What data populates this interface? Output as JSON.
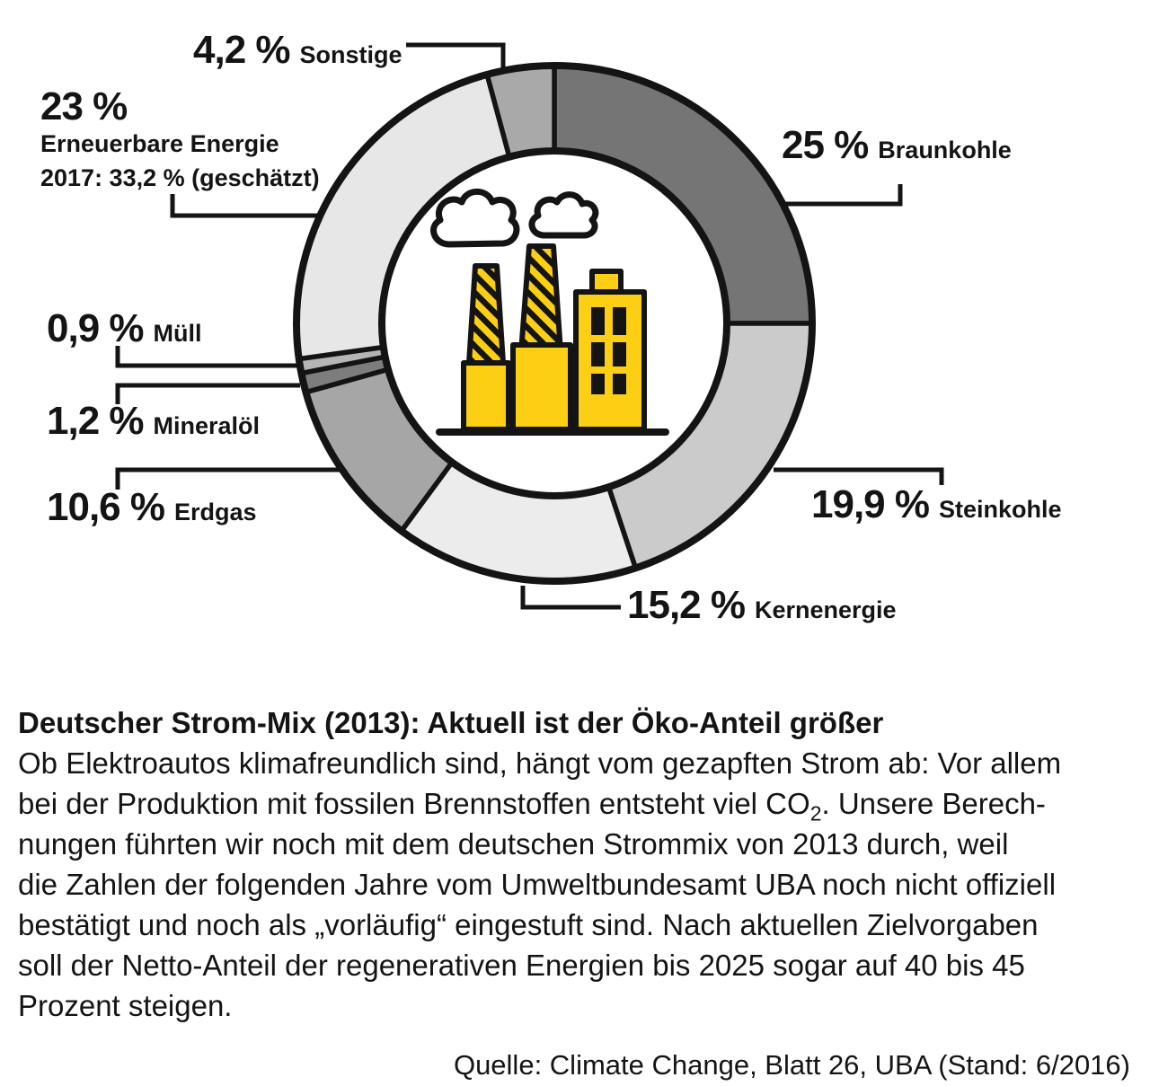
{
  "chart_data": {
    "type": "pie",
    "variant": "donut",
    "title": "Deutscher Strom-Mix (2013)",
    "unit": "%",
    "start_angle_deg": 0,
    "direction": "clockwise",
    "legend_position": "callout-labels",
    "center_icon": "factory",
    "ring_stroke_color": "#141414",
    "segments": [
      {
        "label": "Braunkohle",
        "value": 25.0,
        "display": "25 %",
        "color": "#757575"
      },
      {
        "label": "Steinkohle",
        "value": 19.9,
        "display": "19,9 %",
        "color": "#cbcbcb"
      },
      {
        "label": "Kernenergie",
        "value": 15.2,
        "display": "15,2 %",
        "color": "#ececec"
      },
      {
        "label": "Erdgas",
        "value": 10.6,
        "display": "10,6 %",
        "color": "#a6a6a6"
      },
      {
        "label": "Mineralöl",
        "value": 1.2,
        "display": "1,2 %",
        "color": "#7d7d7d"
      },
      {
        "label": "Müll",
        "value": 0.9,
        "display": "0,9 %",
        "color": "#b5b5b5"
      },
      {
        "label": "Erneuerbare Energie",
        "value": 23.0,
        "display": "23 %",
        "color": "#e7e7e7",
        "note": "2017: 33,2 % (geschätzt)"
      },
      {
        "label": "Sonstige",
        "value": 4.2,
        "display": "4,2 %",
        "color": "#a9a9a9"
      }
    ]
  },
  "icon": {
    "name": "factory-icon",
    "color": "#FCCF14",
    "outline": "#141414"
  },
  "caption": {
    "title": "Deutscher Strom-Mix (2013): Aktuell ist der Öko-Anteil größer",
    "line1": "Ob Elektroautos klimafreundlich sind, hängt vom gezapften Strom ab: Vor allem",
    "line2_pre": "bei der Produktion mit fossilen Brennstoffen entsteht viel CO",
    "line2_sub": "2",
    "line2_post": ". Unsere Berech-",
    "line3": "nungen führten wir noch mit dem deutschen Strommix von 2013 durch, weil",
    "line4": "die Zahlen der folgenden Jahre vom Umweltbundesamt UBA noch nicht offiziell",
    "line5": "bestätigt und noch als „vorläufig“ eingestuft sind. Nach aktuellen Zielvorgaben",
    "line6": "soll der Netto-Anteil der regenerativen Energien bis 2025 sogar auf 40 bis 45",
    "line7": "Prozent steigen.",
    "source": "Quelle: Climate Change, Blatt 26, UBA (Stand: 6/2016)"
  }
}
